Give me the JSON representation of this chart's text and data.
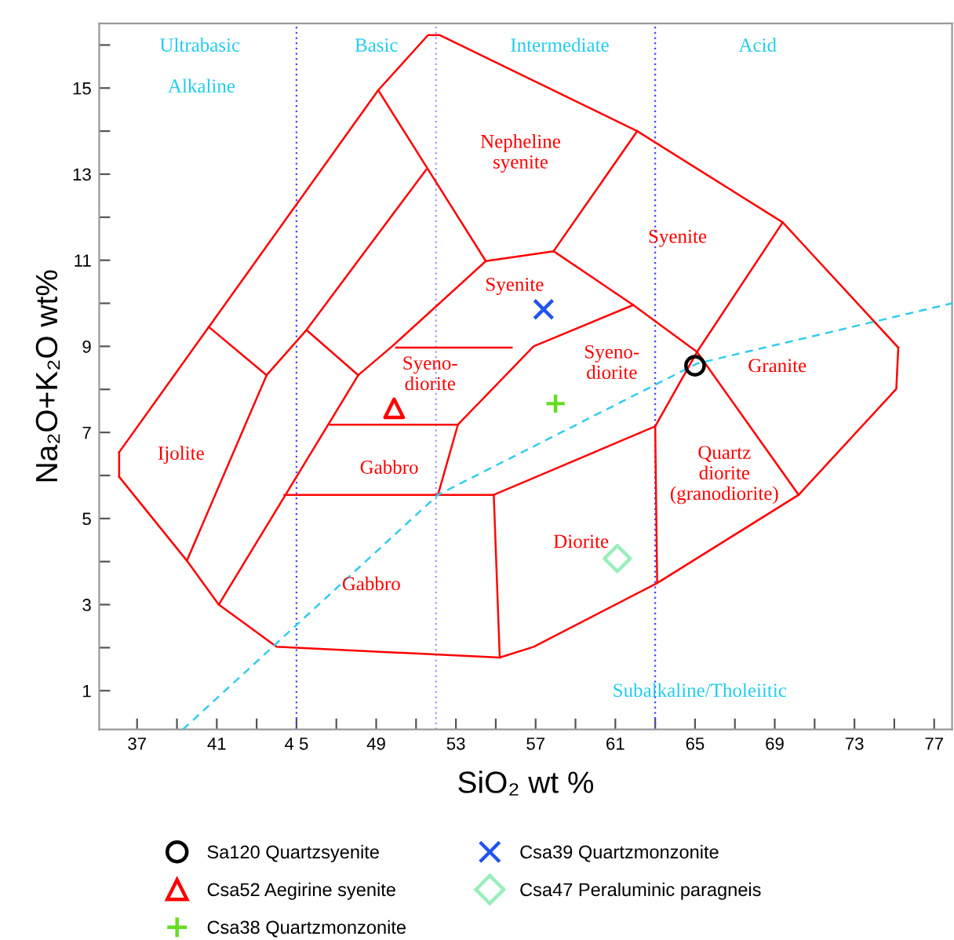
{
  "chart_data": {
    "type": "scatter",
    "xlabel": "SiO₂ wt %",
    "ylabel": "Na₂O+K₂O wt%",
    "xlim": [
      35.1,
      77.9
    ],
    "ylim": [
      0.1,
      16.5
    ],
    "xticks": [
      37,
      {
        "value": 39,
        "label": null
      },
      41,
      {
        "value": 43,
        "label": null
      },
      {
        "value": 45,
        "label": "4 5"
      },
      {
        "value": 47,
        "label": null
      },
      49,
      {
        "value": 51,
        "label": null
      },
      53,
      {
        "value": 55,
        "label": null
      },
      57,
      {
        "value": 59,
        "label": null
      },
      61,
      {
        "value": 63,
        "label": null
      },
      65,
      {
        "value": 67,
        "label": null
      },
      69,
      {
        "value": 71,
        "label": null
      },
      73,
      {
        "value": 75,
        "label": null
      },
      77
    ],
    "yticks": [
      1,
      {
        "value": 2,
        "label": null
      },
      3,
      {
        "value": 4,
        "label": null
      },
      5,
      {
        "value": 6,
        "label": null
      },
      7,
      {
        "value": 8,
        "label": null
      },
      9,
      {
        "value": 10,
        "label": null
      },
      11,
      {
        "value": 12,
        "label": null
      },
      13,
      {
        "value": 14,
        "label": null
      },
      15,
      {
        "value": 16,
        "label": null
      }
    ],
    "grid": false,
    "legend": "bottom",
    "series": [
      {
        "name": "Sa120 Quartzsyenite",
        "color": "#000000",
        "marker": "circle",
        "x": [
          65.0
        ],
        "values": [
          8.55
        ]
      },
      {
        "name": "Csa52 Aegirine syenite",
        "color": "#ff0000",
        "marker": "triangle",
        "x": [
          49.9
        ],
        "values": [
          7.56
        ]
      },
      {
        "name": "Csa38 Quartzmonzonite",
        "color": "#66dd22",
        "marker": "plus",
        "x": [
          58.0
        ],
        "values": [
          7.67
        ]
      },
      {
        "name": "Csa39 Quartzmonzonite",
        "color": "#2255ee",
        "marker": "cross",
        "x": [
          57.4
        ],
        "values": [
          9.86
        ]
      },
      {
        "name": "Csa47 Peraluminic paragneis",
        "color": "#99eebb",
        "marker": "diamond",
        "x": [
          61.1
        ],
        "values": [
          4.07
        ]
      },
      {
        "type": "line",
        "color": "#ff0000",
        "x": [
          36.1,
          39.5,
          41.1,
          44.0,
          55.2,
          56.9,
          63.1,
          70.2,
          75.1,
          75.2
        ],
        "values": [
          5.97,
          4.02,
          3.0,
          2.02,
          1.77,
          2.02,
          3.5,
          5.55,
          8.01,
          8.97
        ]
      },
      {
        "type": "line",
        "color": "#fe0101",
        "x": [
          75.2,
          69.4,
          62.1,
          52.2,
          51.6,
          49.1,
          40.6,
          36.1
        ],
        "values": [
          8.97,
          11.88,
          14.0,
          16.23,
          16.23,
          14.95,
          9.45,
          6.54
        ]
      },
      {
        "type": "line",
        "color": "#fd0202",
        "x": [
          36.1,
          36.1
        ],
        "values": [
          6.54,
          5.97
        ]
      },
      {
        "type": "line",
        "color": "#fc0303",
        "x": [
          40.6,
          43.5
        ],
        "values": [
          9.45,
          8.33
        ]
      },
      {
        "type": "line",
        "color": "#fa0505",
        "x": [
          39.5,
          43.5,
          45.5,
          51.5
        ],
        "values": [
          4.02,
          8.33,
          9.38,
          13.1
        ]
      },
      {
        "type": "line",
        "color": "#f90606",
        "x": [
          45.5,
          48.1
        ],
        "values": [
          9.38,
          8.33
        ]
      },
      {
        "type": "line",
        "color": "#ff0101",
        "x": [
          49.1,
          54.5,
          57.9,
          62.1
        ],
        "values": [
          14.95,
          10.98,
          11.21,
          14.0
        ]
      },
      {
        "type": "line",
        "color": "#ff0202",
        "x": [
          57.9,
          61.9,
          65.1,
          69.4
        ],
        "values": [
          11.21,
          9.96,
          8.87,
          11.88
        ]
      },
      {
        "type": "line",
        "color": "#ff0303",
        "x": [
          54.5,
          49.8,
          48.1,
          41.1
        ],
        "values": [
          10.98,
          9.0,
          8.33,
          3.0
        ]
      },
      {
        "type": "line",
        "color": "#ff0404",
        "x": [
          61.9,
          56.9,
          53.1,
          52.1
        ],
        "values": [
          9.96,
          9.0,
          7.18,
          5.55
        ]
      },
      {
        "type": "line",
        "color": "#ff0505",
        "x": [
          46.7,
          53.1
        ],
        "values": [
          7.18,
          7.18
        ]
      },
      {
        "type": "line",
        "color": "#ff0606",
        "x": [
          44.4,
          54.9,
          55.2
        ],
        "values": [
          5.55,
          5.55,
          1.77
        ]
      },
      {
        "type": "line",
        "color": "#ff0707",
        "x": [
          54.9,
          63.0,
          63.1
        ],
        "values": [
          5.55,
          7.14,
          3.5
        ]
      },
      {
        "type": "line",
        "color": "#fe0000",
        "x": [
          63.0,
          65.1,
          70.2
        ],
        "values": [
          7.14,
          8.87,
          5.55
        ]
      },
      {
        "type": "line",
        "color": "#fd0000",
        "x": [
          50.0,
          55.8
        ],
        "values": [
          8.97,
          8.97
        ]
      },
      {
        "type": "line",
        "color": "#33ccee",
        "line_style": "dashed",
        "x": [
          39.3,
          52.1,
          65.1,
          77.9
        ],
        "values": [
          0.1,
          5.55,
          8.6,
          10.0
        ]
      }
    ],
    "ref_lines": [
      {
        "axis": "x",
        "value": 45,
        "color": "#4444ff",
        "line_style": "dotted"
      },
      {
        "axis": "x",
        "value": 52,
        "color": "#9999ff",
        "line_style": "dotted"
      },
      {
        "axis": "x",
        "value": 63,
        "color": "#4444ff",
        "line_style": "dotted"
      }
    ],
    "annotations": [
      "Ultrabasic",
      "Alkaline",
      "Basic",
      "Intermediate",
      "Acid",
      "Nepheline\nsyenite",
      "Syenite",
      "Syenite",
      "Syeno-\ndiorite",
      "Syeno-\ndiorite",
      "Granite",
      "Ijolite",
      "Gabbro",
      "Quartz\ndiorite\n(granodiorite)",
      "Diorite",
      "Gabbro",
      "Subalkaline/Tholeiitic"
    ]
  }
}
